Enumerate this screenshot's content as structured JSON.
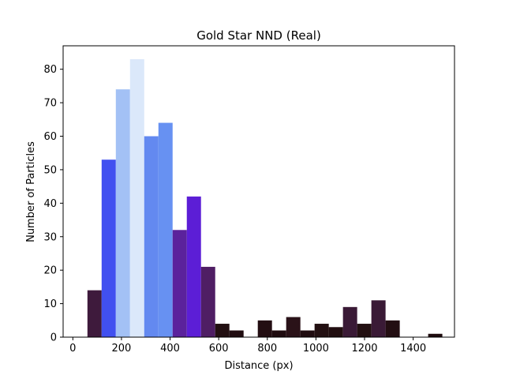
{
  "chart_data": {
    "type": "bar",
    "title": "Gold Star NND (Real)",
    "xlabel": "Distance (px)",
    "ylabel": "Number of Particles",
    "xlim": [
      -40,
      1570
    ],
    "ylim": [
      0,
      87
    ],
    "xticks": [
      0,
      200,
      400,
      600,
      800,
      1000,
      1200,
      1400
    ],
    "yticks": [
      0,
      10,
      20,
      30,
      40,
      50,
      60,
      70,
      80
    ],
    "grid": false,
    "bin_width": 58.4,
    "bins": [
      {
        "x0": 60.0,
        "value": 14,
        "color": "#3e1a3c"
      },
      {
        "x0": 118.4,
        "value": 53,
        "color": "#4150f0"
      },
      {
        "x0": 176.8,
        "value": 74,
        "color": "#a3c1f5"
      },
      {
        "x0": 235.2,
        "value": 83,
        "color": "#dbe8fa"
      },
      {
        "x0": 293.6,
        "value": 60,
        "color": "#6389f0"
      },
      {
        "x0": 352.0,
        "value": 64,
        "color": "#6791f2"
      },
      {
        "x0": 410.4,
        "value": 32,
        "color": "#5b229c"
      },
      {
        "x0": 468.8,
        "value": 42,
        "color": "#5c1ed6"
      },
      {
        "x0": 527.2,
        "value": 21,
        "color": "#4f1e64"
      },
      {
        "x0": 585.6,
        "value": 4,
        "color": "#231012"
      },
      {
        "x0": 644.0,
        "value": 2,
        "color": "#200c10"
      },
      {
        "x0": 702.4,
        "value": 0,
        "color": "#200c10"
      },
      {
        "x0": 760.8,
        "value": 5,
        "color": "#230e12"
      },
      {
        "x0": 819.2,
        "value": 2,
        "color": "#200c10"
      },
      {
        "x0": 877.6,
        "value": 6,
        "color": "#2a1218"
      },
      {
        "x0": 936.0,
        "value": 2,
        "color": "#200c10"
      },
      {
        "x0": 994.4,
        "value": 4,
        "color": "#231012"
      },
      {
        "x0": 1052.8,
        "value": 3,
        "color": "#210e10"
      },
      {
        "x0": 1111.2,
        "value": 9,
        "color": "#3a1a36"
      },
      {
        "x0": 1169.6,
        "value": 4,
        "color": "#231012"
      },
      {
        "x0": 1228.0,
        "value": 11,
        "color": "#3a1a36"
      },
      {
        "x0": 1286.4,
        "value": 5,
        "color": "#230e12"
      },
      {
        "x0": 1344.8,
        "value": 0,
        "color": "#200c10"
      },
      {
        "x0": 1403.2,
        "value": 0,
        "color": "#200c10"
      },
      {
        "x0": 1461.6,
        "value": 1,
        "color": "#1e0b0e"
      }
    ]
  }
}
